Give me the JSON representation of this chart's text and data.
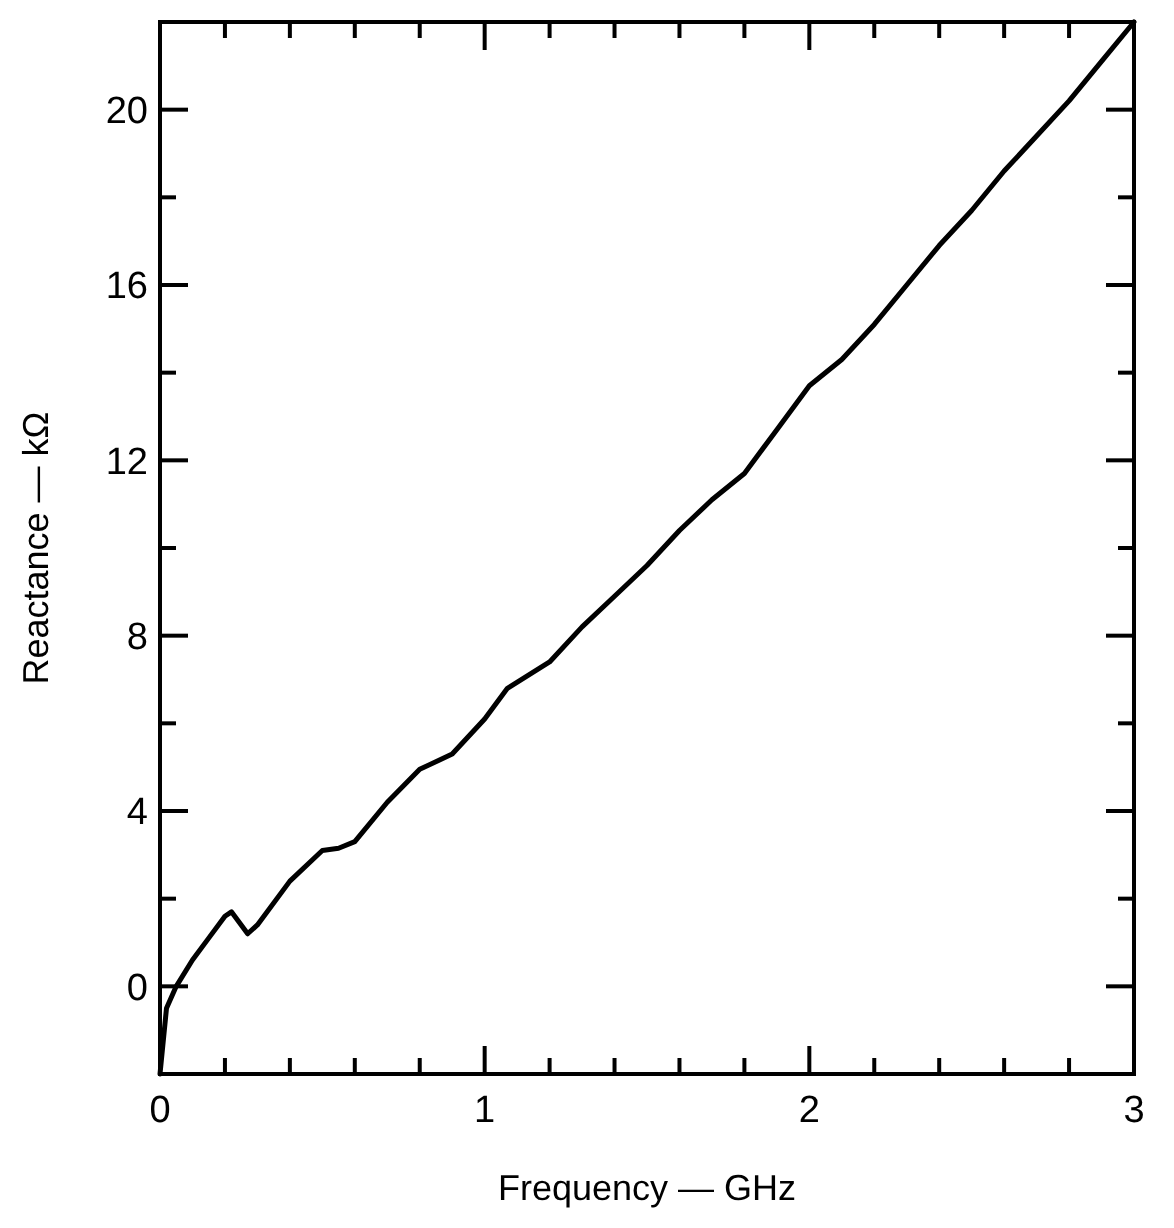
{
  "chart_data": {
    "type": "line",
    "xlabel": "Frequency — GHz",
    "ylabel": "Reactance — kΩ",
    "x": [
      0,
      0.02,
      0.05,
      0.1,
      0.15,
      0.2,
      0.22,
      0.27,
      0.3,
      0.4,
      0.5,
      0.55,
      0.6,
      0.7,
      0.8,
      0.9,
      1.0,
      1.07,
      1.2,
      1.3,
      1.4,
      1.5,
      1.6,
      1.7,
      1.8,
      1.9,
      2.0,
      2.1,
      2.2,
      2.3,
      2.4,
      2.5,
      2.6,
      2.7,
      2.8,
      2.9,
      3.0
    ],
    "series": [
      {
        "color": "#000000",
        "values": [
          -2,
          -0.5,
          0,
          0.6,
          1.1,
          1.6,
          1.7,
          1.2,
          1.4,
          2.4,
          3.1,
          3.15,
          3.3,
          4.2,
          4.95,
          5.3,
          6.1,
          6.8,
          7.4,
          8.2,
          8.9,
          9.6,
          10.4,
          11.1,
          11.7,
          12.7,
          13.7,
          14.3,
          15.1,
          16.0,
          16.9,
          17.7,
          18.6,
          19.4,
          20.2,
          21.1,
          22
        ]
      }
    ],
    "xlim": [
      0,
      3
    ],
    "ylim": [
      -2,
      22
    ],
    "xticks": [
      0,
      {
        "value": 0.2,
        "label": null
      },
      {
        "value": 0.4,
        "label": null
      },
      {
        "value": 0.6,
        "label": null
      },
      {
        "value": 0.8,
        "label": null
      },
      1,
      {
        "value": 1.2,
        "label": null
      },
      {
        "value": 1.4,
        "label": null
      },
      {
        "value": 1.6,
        "label": null
      },
      {
        "value": 1.8,
        "label": null
      },
      2,
      {
        "value": 2.2,
        "label": null
      },
      {
        "value": 2.4,
        "label": null
      },
      {
        "value": 2.6,
        "label": null
      },
      {
        "value": 2.8,
        "label": null
      },
      3
    ],
    "yticks": [
      0,
      {
        "value": 2,
        "label": null
      },
      4,
      {
        "value": 6,
        "label": null
      },
      8,
      {
        "value": 10,
        "label": null
      },
      12,
      {
        "value": 14,
        "label": null
      },
      16,
      {
        "value": 18,
        "label": null
      },
      20
    ],
    "marker": "none",
    "line_style": "solid"
  }
}
